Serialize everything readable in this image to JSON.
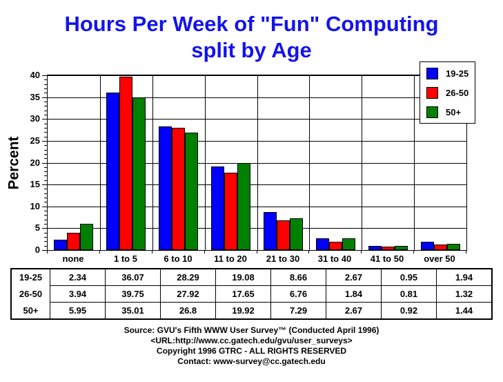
{
  "title": {
    "line1": "Hours Per Week of \"Fun\" Computing",
    "line2": "split by Age",
    "color": "#1313ee"
  },
  "chart_data": {
    "type": "bar",
    "title": "Hours Per Week of \"Fun\" Computing split by Age",
    "ylabel": "Percent",
    "xlabel": "",
    "ylim": [
      0,
      40
    ],
    "ytick_step": 5,
    "y_minor_step": 1,
    "grid": true,
    "legend_position": "top-right",
    "categories": [
      "none",
      "1 to 5",
      "6 to 10",
      "11 to 20",
      "21 to 30",
      "31 to 40",
      "41 to 50",
      "over 50"
    ],
    "series": [
      {
        "name": "19-25",
        "color": "#0000ff",
        "values": [
          2.34,
          36.07,
          28.29,
          19.08,
          8.66,
          2.67,
          0.95,
          1.94
        ]
      },
      {
        "name": "26-50",
        "color": "#ff0000",
        "values": [
          3.94,
          39.75,
          27.92,
          17.65,
          6.76,
          1.84,
          0.81,
          1.32
        ]
      },
      {
        "name": "50+",
        "color": "#008000",
        "values": [
          5.95,
          35.01,
          26.8,
          19.92,
          7.29,
          2.67,
          0.92,
          1.44
        ]
      }
    ]
  },
  "footer": {
    "lines": [
      "Source: GVU's Fifth WWW User Survey™  (Conducted April 1996)",
      "<URL:http://www.cc.gatech.edu/gvu/user_surveys>",
      "Copyright 1996 GTRC -  ALL RIGHTS RESERVED",
      "Contact: www-survey@cc.gatech.edu"
    ]
  }
}
